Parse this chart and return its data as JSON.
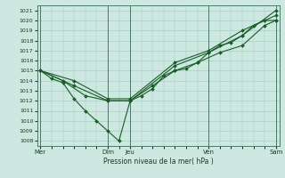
{
  "title": "",
  "xlabel": "Pression niveau de la mer( hPa )",
  "ylabel": "",
  "bg_color": "#cce8e0",
  "grid_color": "#9ec8bc",
  "line_color": "#1a5c28",
  "ylim": [
    1007.5,
    1021.5
  ],
  "yticks": [
    1008,
    1009,
    1010,
    1011,
    1012,
    1013,
    1014,
    1015,
    1016,
    1017,
    1018,
    1019,
    1020,
    1021
  ],
  "xtick_labels": [
    "Mer",
    "Dim",
    "Jeu",
    "Ven",
    "Sam"
  ],
  "xtick_pos": [
    0,
    6,
    8,
    15,
    21
  ],
  "vlines": [
    0,
    6,
    8,
    15,
    21
  ],
  "line1_x": [
    0,
    1,
    2,
    3,
    4,
    5,
    6,
    7,
    8,
    9,
    10,
    11,
    12,
    13,
    14,
    15,
    16,
    17,
    18,
    19,
    20,
    21
  ],
  "line1_y": [
    1015,
    1014.2,
    1013.8,
    1012.2,
    1011,
    1010,
    1009,
    1008,
    1012,
    1012.5,
    1013.2,
    1014.5,
    1015,
    1015.2,
    1015.8,
    1016.8,
    1017.5,
    1017.8,
    1018.5,
    1019.5,
    1020,
    1020
  ],
  "line2_x": [
    0,
    2,
    4,
    6,
    8,
    10,
    12,
    14,
    16,
    18,
    20,
    21
  ],
  "line2_y": [
    1015,
    1014,
    1012.5,
    1012,
    1012,
    1013.5,
    1015,
    1015.8,
    1016.8,
    1017.5,
    1019.5,
    1020
  ],
  "line3_x": [
    0,
    3,
    6,
    8,
    12,
    15,
    18,
    21
  ],
  "line3_y": [
    1015,
    1013.5,
    1012,
    1012,
    1015.5,
    1016.8,
    1018.5,
    1021
  ],
  "line4_x": [
    0,
    3,
    6,
    8,
    12,
    15,
    18,
    21
  ],
  "line4_y": [
    1015,
    1014,
    1012.2,
    1012.2,
    1015.8,
    1017,
    1019,
    1020.5
  ]
}
